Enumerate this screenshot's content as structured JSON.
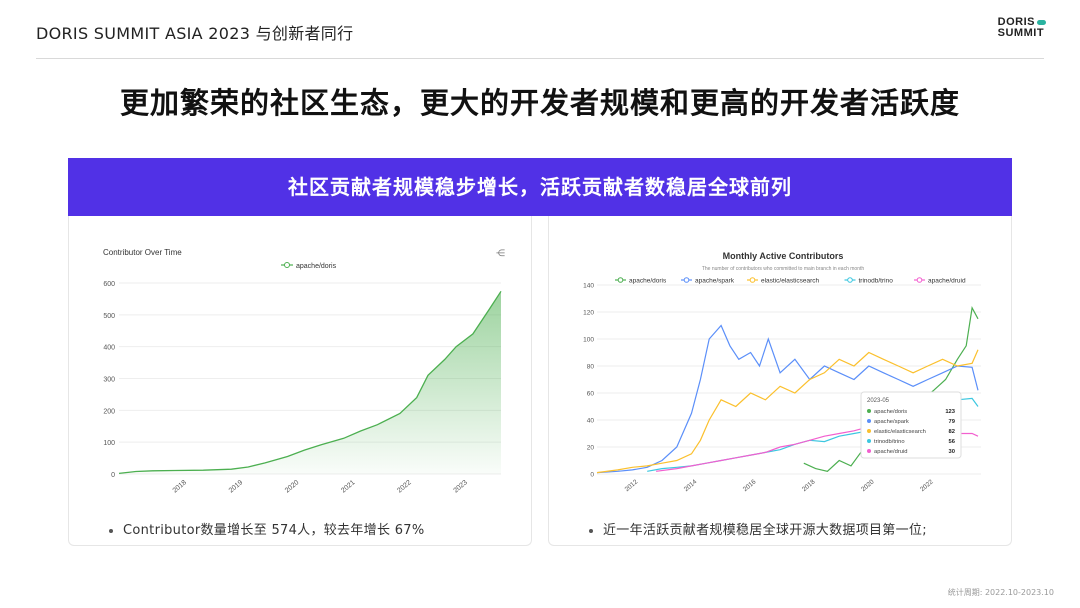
{
  "header": {
    "event_title": "DORIS SUMMIT ASIA 2023  与创新者同行",
    "logo_line1": "DORIS",
    "logo_line2": "SUMMIT"
  },
  "main_title": "更加繁荣的社区生态，更大的开发者规模和更高的开发者活跃度",
  "banner_text": "社区贡献者规模稳步增长，活跃贡献者数稳居全球前列",
  "left_panel": {
    "bullet": "Contributor数量增长至 574人，较去年增长 67%"
  },
  "right_panel": {
    "bullet": "近一年活跃贡献者规模稳居全球开源大数据项目第一位;"
  },
  "footnote": "统计周期: 2022.10-2023.10",
  "colors": {
    "banner": "#5131e6",
    "doris": "#4caf50",
    "spark": "#5b8ff9",
    "elastic": "#fbc02d",
    "trino": "#3cc7e0",
    "druid": "#f25fcf"
  },
  "chart_data": [
    {
      "type": "area",
      "title": "Contributor Over Time",
      "legend": [
        "apache/doris"
      ],
      "legend_position": "top-center",
      "ylim": [
        0,
        600
      ],
      "yticks": [
        "0",
        "100",
        "200",
        "300",
        "400",
        "500",
        "600"
      ],
      "xticks": [
        "2018",
        "2019",
        "2020",
        "2021",
        "2022",
        "2023"
      ],
      "series": [
        {
          "name": "apache/doris",
          "x": [
            2017.0,
            2017.3,
            2017.6,
            2018.0,
            2018.5,
            2019.0,
            2019.3,
            2019.6,
            2020.0,
            2020.3,
            2020.6,
            2021.0,
            2021.3,
            2021.6,
            2022.0,
            2022.3,
            2022.5,
            2022.8,
            2023.0,
            2023.3,
            2023.6,
            2023.8
          ],
          "values": [
            2,
            8,
            10,
            11,
            12,
            15,
            22,
            35,
            55,
            75,
            92,
            112,
            135,
            155,
            190,
            240,
            310,
            360,
            400,
            440,
            520,
            574
          ]
        }
      ]
    },
    {
      "type": "line",
      "title": "Monthly Active Contributors",
      "subtitle": "The number of contributors who committed to main branch in each month",
      "legend": [
        "apache/doris",
        "apache/spark",
        "elastic/elasticsearch",
        "trinodb/trino",
        "apache/druid"
      ],
      "legend_position": "top-center",
      "ylim": [
        0,
        140
      ],
      "yticks": [
        "0",
        "20",
        "40",
        "60",
        "80",
        "100",
        "120",
        "140"
      ],
      "xticks": [
        "2012",
        "2014",
        "2016",
        "2018",
        "2020",
        "2022"
      ],
      "series": [
        {
          "name": "apache/doris",
          "x": [
            2017.8,
            2018.2,
            2018.6,
            2019.0,
            2019.4,
            2019.8,
            2020.2,
            2020.6,
            2021.0,
            2021.4,
            2021.8,
            2022.2,
            2022.6,
            2023.0,
            2023.3,
            2023.5,
            2023.7
          ],
          "values": [
            8,
            4,
            2,
            10,
            6,
            18,
            28,
            35,
            40,
            45,
            55,
            62,
            70,
            85,
            95,
            123,
            115
          ]
        },
        {
          "name": "apache/spark",
          "x": [
            2010.8,
            2011.5,
            2012.0,
            2012.5,
            2013.0,
            2013.5,
            2014.0,
            2014.3,
            2014.6,
            2015.0,
            2015.3,
            2015.6,
            2016.0,
            2016.3,
            2016.6,
            2017.0,
            2017.5,
            2018.0,
            2018.5,
            2019.0,
            2019.5,
            2020.0,
            2020.5,
            2021.0,
            2021.5,
            2022.0,
            2022.5,
            2023.0,
            2023.5,
            2023.7
          ],
          "values": [
            1,
            2,
            3,
            5,
            10,
            20,
            45,
            70,
            100,
            110,
            95,
            85,
            90,
            80,
            100,
            75,
            85,
            70,
            80,
            75,
            70,
            80,
            75,
            70,
            65,
            70,
            75,
            80,
            79,
            62
          ]
        },
        {
          "name": "elastic/elasticsearch",
          "x": [
            2010.8,
            2011.5,
            2012.0,
            2012.5,
            2013.0,
            2013.5,
            2014.0,
            2014.3,
            2014.6,
            2015.0,
            2015.5,
            2016.0,
            2016.5,
            2017.0,
            2017.5,
            2018.0,
            2018.5,
            2019.0,
            2019.5,
            2020.0,
            2020.5,
            2021.0,
            2021.5,
            2022.0,
            2022.5,
            2023.0,
            2023.5,
            2023.7
          ],
          "values": [
            1,
            3,
            5,
            6,
            8,
            10,
            15,
            25,
            40,
            55,
            50,
            60,
            55,
            65,
            60,
            70,
            75,
            85,
            80,
            90,
            85,
            80,
            75,
            80,
            85,
            80,
            82,
            92
          ]
        },
        {
          "name": "trinodb/trino",
          "x": [
            2012.5,
            2013.0,
            2013.5,
            2014.0,
            2014.5,
            2015.0,
            2015.5,
            2016.0,
            2016.5,
            2017.0,
            2017.5,
            2018.0,
            2018.5,
            2019.0,
            2019.5,
            2020.0,
            2020.5,
            2021.0,
            2021.5,
            2022.0,
            2022.5,
            2023.0,
            2023.5,
            2023.7
          ],
          "values": [
            2,
            4,
            5,
            6,
            8,
            10,
            12,
            14,
            16,
            18,
            22,
            25,
            24,
            28,
            30,
            32,
            35,
            38,
            40,
            45,
            48,
            55,
            56,
            50
          ]
        },
        {
          "name": "apache/druid",
          "x": [
            2012.8,
            2013.5,
            2014.0,
            2014.5,
            2015.0,
            2015.5,
            2016.0,
            2016.5,
            2017.0,
            2017.5,
            2018.0,
            2018.5,
            2019.0,
            2019.5,
            2020.0,
            2020.5,
            2021.0,
            2021.5,
            2022.0,
            2022.5,
            2023.0,
            2023.5,
            2023.7
          ],
          "values": [
            2,
            4,
            6,
            8,
            10,
            12,
            14,
            16,
            20,
            22,
            25,
            28,
            30,
            32,
            35,
            38,
            36,
            34,
            35,
            32,
            30,
            30,
            28
          ]
        }
      ],
      "tooltip": {
        "title": "2023-05",
        "rows": [
          {
            "name": "apache/doris",
            "value": "123"
          },
          {
            "name": "apache/spark",
            "value": "79"
          },
          {
            "name": "elastic/elasticsearch",
            "value": "82"
          },
          {
            "name": "trinodb/trino",
            "value": "56"
          },
          {
            "name": "apache/druid",
            "value": "30"
          }
        ]
      }
    }
  ]
}
